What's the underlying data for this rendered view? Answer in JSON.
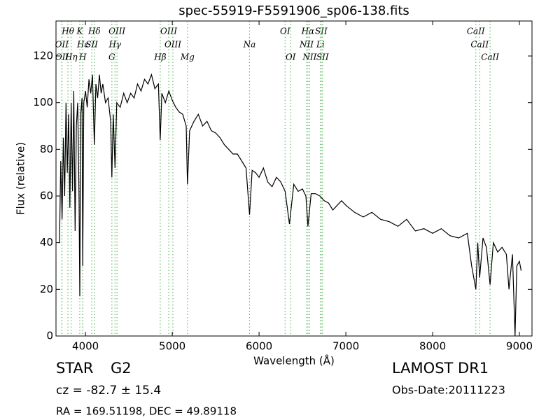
{
  "chart_data": {
    "type": "line",
    "title": "spec-55919-F5591906_sp06-138.fits",
    "x_label": "Wavelength (Å)",
    "y_label": "Flux (relative)",
    "color": "#000000",
    "marker_color": "#66bb66",
    "xlim": [
      3660,
      9145
    ],
    "ylim": [
      0,
      135
    ],
    "xticks": [
      4000,
      5000,
      6000,
      7000,
      8000,
      9000
    ],
    "yticks": [
      0,
      20,
      40,
      60,
      80,
      100,
      120
    ],
    "x": [
      3700,
      3715,
      3730,
      3745,
      3760,
      3775,
      3790,
      3805,
      3820,
      3835,
      3850,
      3865,
      3880,
      3895,
      3910,
      3925,
      3934,
      3945,
      3960,
      3968,
      3980,
      4000,
      4020,
      4040,
      4060,
      4080,
      4102,
      4120,
      4140,
      4160,
      4180,
      4200,
      4230,
      4260,
      4290,
      4304,
      4320,
      4340,
      4360,
      4400,
      4440,
      4480,
      4520,
      4560,
      4600,
      4640,
      4680,
      4720,
      4760,
      4800,
      4840,
      4861,
      4880,
      4920,
      4960,
      5000,
      5040,
      5080,
      5120,
      5160,
      5175,
      5200,
      5250,
      5300,
      5350,
      5400,
      5450,
      5500,
      5550,
      5600,
      5650,
      5700,
      5750,
      5800,
      5850,
      5890,
      5920,
      5960,
      6000,
      6050,
      6100,
      6150,
      6200,
      6250,
      6300,
      6350,
      6400,
      6450,
      6500,
      6540,
      6563,
      6600,
      6650,
      6700,
      6750,
      6800,
      6850,
      6900,
      6950,
      7000,
      7100,
      7200,
      7300,
      7400,
      7500,
      7600,
      7700,
      7800,
      7900,
      8000,
      8100,
      8200,
      8300,
      8400,
      8450,
      8498,
      8520,
      8542,
      8580,
      8620,
      8662,
      8700,
      8750,
      8800,
      8850,
      8880,
      8920,
      8950,
      8970,
      9000,
      9020
    ],
    "values": [
      40,
      75,
      50,
      85,
      60,
      100,
      70,
      95,
      55,
      100,
      62,
      105,
      45,
      90,
      100,
      60,
      17,
      95,
      102,
      30,
      100,
      105,
      98,
      110,
      104,
      112,
      82,
      108,
      102,
      112,
      104,
      108,
      100,
      102,
      92,
      68,
      95,
      72,
      100,
      98,
      104,
      100,
      104,
      102,
      108,
      105,
      110,
      108,
      112,
      106,
      108,
      84,
      104,
      100,
      105,
      101,
      98,
      96,
      95,
      90,
      65,
      88,
      92,
      95,
      90,
      92,
      88,
      87,
      85,
      82,
      80,
      78,
      78,
      75,
      72,
      52,
      71,
      70,
      68,
      72,
      66,
      64,
      68,
      66,
      62,
      48,
      65,
      62,
      63,
      60,
      47,
      61,
      61,
      60,
      58,
      57,
      54,
      56,
      58,
      56,
      53,
      51,
      53,
      50,
      49,
      47,
      50,
      45,
      46,
      44,
      46,
      43,
      42,
      44,
      30,
      20,
      40,
      25,
      42,
      38,
      22,
      40,
      36,
      38,
      35,
      20,
      35,
      0,
      30,
      32,
      28
    ],
    "line_markers": [
      [
        {
          "label": "Hθ",
          "wavelength": 3798
        },
        {
          "label": "K",
          "wavelength": 3934
        },
        {
          "label": "Hδ",
          "wavelength": 4102
        },
        {
          "label": "OIII",
          "wavelength": 4363
        },
        {
          "label": "OIII",
          "wavelength": 4959
        },
        {
          "label": "OI",
          "wavelength": 6300
        },
        {
          "label": "Hα",
          "wavelength": 6563
        },
        {
          "label": "SII",
          "wavelength": 6716
        },
        {
          "label": "CaII",
          "wavelength": 8498
        }
      ],
      [
        {
          "label": "OII",
          "wavelength": 3727
        },
        {
          "label": "Hε",
          "wavelength": 3970
        },
        {
          "label": "SII",
          "wavelength": 4072
        },
        {
          "label": "Hγ",
          "wavelength": 4340
        },
        {
          "label": "OIII",
          "wavelength": 5007
        },
        {
          "label": "Na",
          "wavelength": 5890
        },
        {
          "label": "NII",
          "wavelength": 6548
        },
        {
          "label": "Li",
          "wavelength": 6708
        },
        {
          "label": "CaII",
          "wavelength": 8542
        }
      ],
      [
        {
          "label": "OII",
          "wavelength": 3729
        },
        {
          "label": "Hη",
          "wavelength": 3835
        },
        {
          "label": "H",
          "wavelength": 3968
        },
        {
          "label": "G",
          "wavelength": 4304
        },
        {
          "label": "Hβ",
          "wavelength": 4861
        },
        {
          "label": "Mg",
          "wavelength": 5175
        },
        {
          "label": "OI",
          "wavelength": 6364
        },
        {
          "label": "NII",
          "wavelength": 6583
        },
        {
          "label": "SII",
          "wavelength": 6731
        },
        {
          "label": "CaII",
          "wavelength": 8662
        }
      ]
    ],
    "object_class": "STAR",
    "subclass": "G2",
    "redshift": "cz = -82.7 ± 15.4",
    "coordinates": "RA = 169.51198, DEC = 49.89118",
    "survey": "LAMOST DR1",
    "obs_date": "Obs-Date:20111223"
  }
}
